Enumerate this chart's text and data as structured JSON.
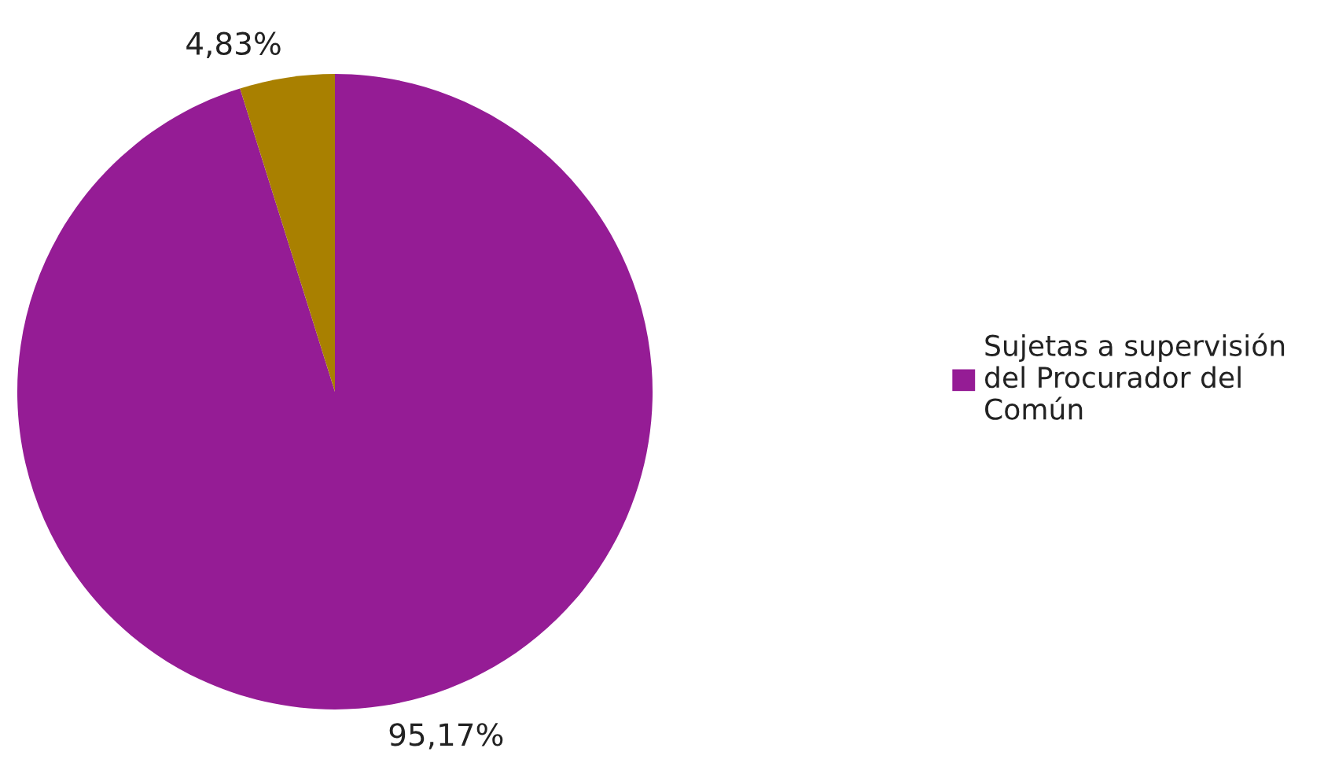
{
  "chart_data": {
    "type": "pie",
    "categories": [
      "Sujetas a supervisión del Procurador del Común",
      null
    ],
    "values": [
      95.17,
      4.83
    ],
    "colors": [
      "#951c95",
      "#a98000"
    ],
    "value_labels": [
      "95,17%",
      "4,83%"
    ],
    "legend": "right"
  }
}
